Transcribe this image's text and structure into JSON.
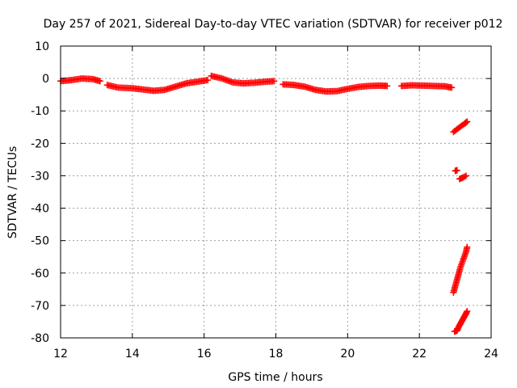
{
  "chart_data": {
    "type": "scatter",
    "title": "Day 257 of 2021, Sidereal Day-to-day VTEC variation (SDTVAR) for receiver p012",
    "xlabel": "GPS time / hours",
    "ylabel": "SDTVAR / TECUs",
    "xlim": [
      12,
      24
    ],
    "ylim": [
      -80,
      10
    ],
    "xticks": [
      12,
      14,
      16,
      18,
      20,
      22,
      24
    ],
    "yticks": [
      10,
      0,
      -10,
      -20,
      -30,
      -40,
      -50,
      -60,
      -70,
      -80
    ],
    "grid": true,
    "marker": "+",
    "colors": {
      "series": "#ff0000",
      "grid": "#a0a0a0",
      "axes": "#000000"
    },
    "segments": [
      {
        "x": [
          12.0,
          12.3,
          12.6,
          12.9,
          13.1
        ],
        "y": [
          -0.8,
          -0.5,
          0.0,
          -0.2,
          -0.8
        ]
      },
      {
        "x": [
          13.3,
          13.6,
          14.0,
          14.3,
          14.6,
          14.9,
          15.2,
          15.5,
          15.8,
          16.1
        ],
        "y": [
          -2.0,
          -2.8,
          -3.0,
          -3.4,
          -3.8,
          -3.5,
          -2.5,
          -1.5,
          -1.0,
          -0.5
        ]
      },
      {
        "x": [
          16.2,
          16.5,
          16.8,
          17.1,
          17.4,
          17.7,
          17.95
        ],
        "y": [
          0.8,
          0.0,
          -1.2,
          -1.5,
          -1.3,
          -1.0,
          -0.8
        ]
      },
      {
        "x": [
          18.2,
          18.5,
          18.8,
          19.1,
          19.4,
          19.7,
          20.0,
          20.3,
          20.6,
          20.9,
          21.1
        ],
        "y": [
          -1.8,
          -2.0,
          -2.5,
          -3.5,
          -4.0,
          -3.9,
          -3.2,
          -2.6,
          -2.3,
          -2.2,
          -2.3
        ]
      },
      {
        "x": [
          21.5,
          21.8,
          22.1,
          22.4,
          22.7,
          22.9
        ],
        "y": [
          -2.3,
          -2.1,
          -2.2,
          -2.3,
          -2.4,
          -2.8
        ]
      },
      {
        "x": [
          22.95,
          23.1,
          23.25,
          23.33
        ],
        "y": [
          -16.5,
          -15.2,
          -14.0,
          -13.3
        ]
      },
      {
        "x": [
          23.0,
          23.05
        ],
        "y": [
          -28.5,
          -28.3
        ]
      },
      {
        "x": [
          23.12,
          23.22,
          23.3
        ],
        "y": [
          -31.0,
          -30.5,
          -30.0
        ]
      },
      {
        "x": [
          22.95,
          23.0,
          23.05,
          23.1,
          23.15,
          23.2,
          23.25,
          23.3,
          23.33
        ],
        "y": [
          -66.0,
          -64.0,
          -62.0,
          -60.0,
          -58.0,
          -56.5,
          -55.0,
          -53.5,
          -52.0
        ]
      },
      {
        "x": [
          22.98,
          23.05,
          23.1,
          23.15,
          23.2,
          23.25,
          23.3,
          23.33
        ],
        "y": [
          -78.0,
          -77.8,
          -76.5,
          -75.5,
          -74.5,
          -73.5,
          -72.5,
          -71.8
        ]
      }
    ]
  }
}
